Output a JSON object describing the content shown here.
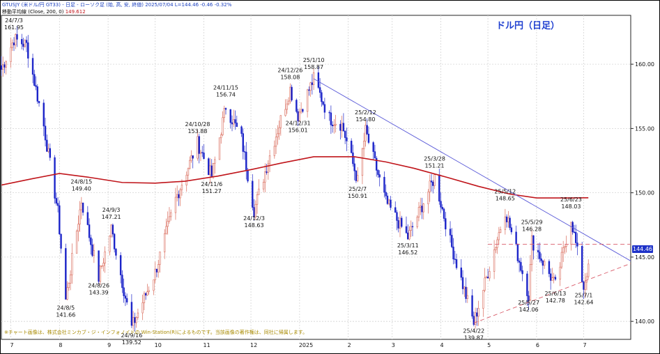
{
  "header": {
    "symbol_line": "GTUSJY (米ドル/円 GT33) - 日足 - ローソク足 (始, 高, 安, 終値)   2025/07/04  L=144.46  -0.46  -0.32%",
    "ma_label": "移動平均線 (Close, 200, 0)",
    "ma_value": "149.612"
  },
  "title": "ドル円（日足）",
  "note": "※チャート画像は、株式会社ミンカブ・ジ・インフォノイドの Win-Station(R)によるものです。当該画像の著作権は、同社に帰属します。",
  "price_badge": "144.46",
  "colors": {
    "up": "#d96a5a",
    "down": "#1c25c9",
    "ma": "#c0151b",
    "trend": "#5a5ad8",
    "resistance": "#d95c6a",
    "accent": "#1f3fd0"
  },
  "chart_data": {
    "type": "candlestick",
    "title": "ドル円（日足）",
    "x_range": [
      "2024-06-25",
      "2025-07-31"
    ],
    "ylim": [
      138.6,
      163.8
    ],
    "y_ticks": [
      140.0,
      145.0,
      150.0,
      155.0,
      160.0
    ],
    "x_ticks": [
      {
        "date": "2024-07-01",
        "label": "7"
      },
      {
        "date": "2024-08-01",
        "label": "8"
      },
      {
        "date": "2024-09-01",
        "label": "9"
      },
      {
        "date": "2024-10-01",
        "label": "10"
      },
      {
        "date": "2024-11-01",
        "label": "11"
      },
      {
        "date": "2024-12-01",
        "label": "12"
      },
      {
        "date": "2025-01-01",
        "label": "2025"
      },
      {
        "date": "2025-02-01",
        "label": "2"
      },
      {
        "date": "2025-03-01",
        "label": "3"
      },
      {
        "date": "2025-04-01",
        "label": "4"
      },
      {
        "date": "2025-05-01",
        "label": "5"
      },
      {
        "date": "2025-06-01",
        "label": "6"
      },
      {
        "date": "2025-07-01",
        "label": "7"
      }
    ],
    "pivots": [
      {
        "date": "2024-06-25",
        "close": 159.6
      },
      {
        "date": "2024-07-03",
        "close": 161.95,
        "label_date": "24/7/3",
        "label_value": "161.95",
        "pos": "above"
      },
      {
        "date": "2024-07-11",
        "close": 161.5
      },
      {
        "date": "2024-07-22",
        "close": 155.2
      },
      {
        "date": "2024-07-31",
        "close": 148.5
      },
      {
        "date": "2024-08-05",
        "close": 141.66,
        "label_date": "24/8/5",
        "label_value": "141.66",
        "pos": "below"
      },
      {
        "date": "2024-08-15",
        "close": 149.4,
        "label_date": "24/8/15",
        "label_value": "149.40",
        "pos": "above"
      },
      {
        "date": "2024-08-26",
        "close": 143.39,
        "label_date": "24/8/26",
        "label_value": "143.39",
        "pos": "below"
      },
      {
        "date": "2024-09-03",
        "close": 147.21,
        "label_date": "24/9/3",
        "label_value": "147.21",
        "pos": "above"
      },
      {
        "date": "2024-09-16",
        "close": 139.52,
        "label_date": "24/9/16",
        "label_value": "139.52",
        "pos": "below"
      },
      {
        "date": "2024-10-01",
        "close": 143.8
      },
      {
        "date": "2024-10-14",
        "close": 149.5
      },
      {
        "date": "2024-10-28",
        "close": 153.88,
        "label_date": "24/10/28",
        "label_value": "153.88",
        "pos": "above"
      },
      {
        "date": "2024-11-06",
        "close": 151.27,
        "label_date": "24/11/6",
        "label_value": "151.27",
        "pos": "below"
      },
      {
        "date": "2024-11-15",
        "close": 156.74,
        "label_date": "24/11/15",
        "label_value": "156.74",
        "pos": "above"
      },
      {
        "date": "2024-11-25",
        "close": 154.2
      },
      {
        "date": "2024-12-03",
        "close": 148.63,
        "label_date": "24/12/3",
        "label_value": "148.63",
        "pos": "below"
      },
      {
        "date": "2024-12-12",
        "close": 152.5
      },
      {
        "date": "2024-12-26",
        "close": 158.08,
        "label_date": "24/12/26",
        "label_value": "158.08",
        "pos": "above"
      },
      {
        "date": "2024-12-31",
        "close": 156.01,
        "label_date": "24/12/31",
        "label_value": "156.01",
        "pos": "below"
      },
      {
        "date": "2025-01-10",
        "close": 158.87,
        "label_date": "25/1/10",
        "label_value": "158.87",
        "pos": "above"
      },
      {
        "date": "2025-01-20",
        "close": 155.8
      },
      {
        "date": "2025-01-28",
        "close": 155.3
      },
      {
        "date": "2025-02-07",
        "close": 150.91,
        "label_date": "25/2/7",
        "label_value": "150.91",
        "pos": "below"
      },
      {
        "date": "2025-02-12",
        "close": 154.8,
        "label_date": "25/2/12",
        "label_value": "154.80",
        "pos": "above"
      },
      {
        "date": "2025-02-25",
        "close": 149.3
      },
      {
        "date": "2025-03-11",
        "close": 146.52,
        "label_date": "25/3/11",
        "label_value": "146.52",
        "pos": "below"
      },
      {
        "date": "2025-03-28",
        "close": 151.21,
        "label_date": "25/3/28",
        "label_value": "151.21",
        "pos": "above"
      },
      {
        "date": "2025-04-07",
        "close": 146.2
      },
      {
        "date": "2025-04-22",
        "close": 139.87,
        "label_date": "25/4/22",
        "label_value": "139.87",
        "pos": "below"
      },
      {
        "date": "2025-05-12",
        "close": 148.65,
        "label_date": "25/5/12",
        "label_value": "148.65",
        "pos": "above"
      },
      {
        "date": "2025-05-27",
        "close": 142.06,
        "label_date": "25/5/27",
        "label_value": "142.06",
        "pos": "below"
      },
      {
        "date": "2025-05-29",
        "close": 146.28,
        "label_date": "25/5/29",
        "label_value": "146.28",
        "pos": "above"
      },
      {
        "date": "2025-06-13",
        "close": 142.78,
        "label_date": "25/6/13",
        "label_value": "142.78",
        "pos": "below"
      },
      {
        "date": "2025-06-23",
        "close": 148.03,
        "label_date": "25/6/23",
        "label_value": "148.03",
        "pos": "above"
      },
      {
        "date": "2025-07-01",
        "close": 142.64,
        "label_date": "25/7/1",
        "label_value": "142.64",
        "pos": "below"
      },
      {
        "date": "2025-07-04",
        "close": 144.46
      }
    ],
    "ma200": [
      {
        "date": "2024-06-25",
        "v": 150.6
      },
      {
        "date": "2024-07-15",
        "v": 151.1
      },
      {
        "date": "2024-08-01",
        "v": 151.5
      },
      {
        "date": "2024-08-20",
        "v": 151.2
      },
      {
        "date": "2024-09-10",
        "v": 150.8
      },
      {
        "date": "2024-10-01",
        "v": 150.75
      },
      {
        "date": "2024-10-20",
        "v": 150.9
      },
      {
        "date": "2024-11-10",
        "v": 151.3
      },
      {
        "date": "2024-12-01",
        "v": 151.8
      },
      {
        "date": "2024-12-20",
        "v": 152.3
      },
      {
        "date": "2025-01-10",
        "v": 152.8
      },
      {
        "date": "2025-02-05",
        "v": 152.8
      },
      {
        "date": "2025-02-25",
        "v": 152.4
      },
      {
        "date": "2025-03-15",
        "v": 151.9
      },
      {
        "date": "2025-04-05",
        "v": 151.2
      },
      {
        "date": "2025-04-25",
        "v": 150.5
      },
      {
        "date": "2025-05-15",
        "v": 149.9
      },
      {
        "date": "2025-06-01",
        "v": 149.6
      },
      {
        "date": "2025-06-20",
        "v": 149.6
      },
      {
        "date": "2025-07-04",
        "v": 149.61
      }
    ],
    "trendline_down": [
      {
        "date": "2025-01-10",
        "v": 158.87
      },
      {
        "date": "2025-07-31",
        "v": 144.7
      }
    ],
    "trendline_support": [
      {
        "date": "2025-04-22",
        "v": 139.87
      },
      {
        "date": "2025-07-31",
        "v": 144.5
      }
    ],
    "resistance_dashed": {
      "from": "2025-05-01",
      "to": "2025-07-31",
      "v": 146.0
    }
  }
}
